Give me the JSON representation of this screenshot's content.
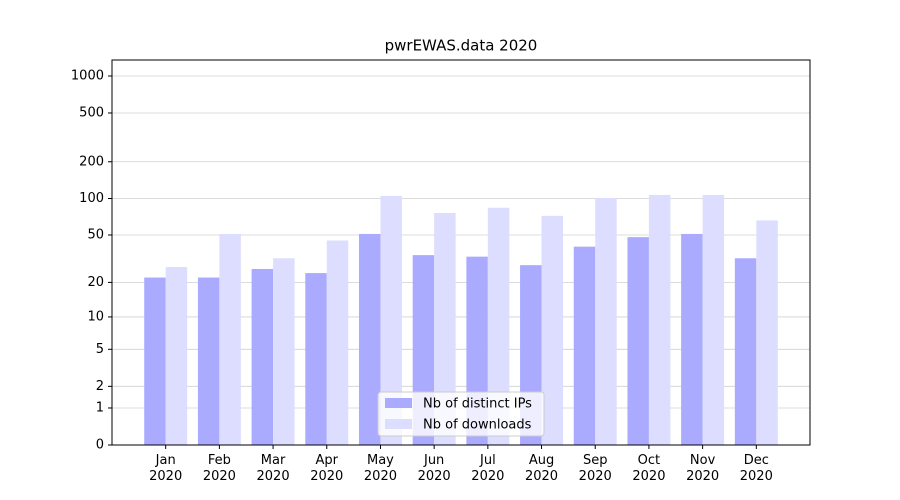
{
  "chart_data": {
    "type": "bar",
    "title": "pwrEWAS.data 2020",
    "categories": [
      "Jan\n2020",
      "Feb\n2020",
      "Mar\n2020",
      "Apr\n2020",
      "May\n2020",
      "Jun\n2020",
      "Jul\n2020",
      "Aug\n2020",
      "Sep\n2020",
      "Oct\n2020",
      "Nov\n2020",
      "Dec\n2020"
    ],
    "series": [
      {
        "name": "Nb of distinct IPs",
        "color": "#aaaaff",
        "values": [
          22,
          22,
          26,
          24,
          51,
          34,
          33,
          28,
          40,
          48,
          51,
          32
        ]
      },
      {
        "name": "Nb of downloads",
        "color": "#ddddff",
        "values": [
          27,
          51,
          32,
          45,
          105,
          76,
          84,
          72,
          101,
          107,
          107,
          66
        ]
      }
    ],
    "yscale": "log1p",
    "ylim": [
      0,
      1350
    ],
    "yticks": [
      0,
      1,
      2,
      5,
      10,
      20,
      50,
      100,
      200,
      500,
      1000
    ],
    "grid": true,
    "legend": "lower center"
  }
}
